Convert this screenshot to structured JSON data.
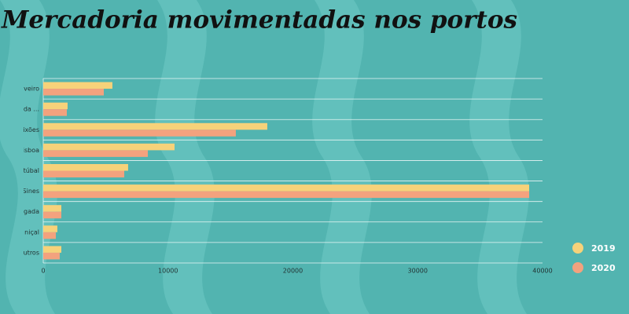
{
  "chart_data": {
    "type": "hbar",
    "title": "Mercadoria movimentadas  nos portos",
    "categories": [
      "veiro",
      "da ...",
      "ixões",
      "isboa",
      "etúbal",
      "Sines",
      "lgada",
      "niçal",
      "utros"
    ],
    "series": [
      {
        "name": "2019",
        "color": "#f6d27a",
        "values": [
          5540,
          1950,
          17950,
          10520,
          6800,
          38930,
          1450,
          1130,
          1450
        ]
      },
      {
        "name": "2020",
        "color": "#f3a27e",
        "values": [
          4850,
          1890,
          15430,
          8380,
          6490,
          38930,
          1450,
          1010,
          1320
        ]
      }
    ],
    "xlim": [
      0,
      40000
    ],
    "xticks": [
      0,
      10000,
      20000,
      30000,
      40000
    ],
    "legend": "right"
  }
}
